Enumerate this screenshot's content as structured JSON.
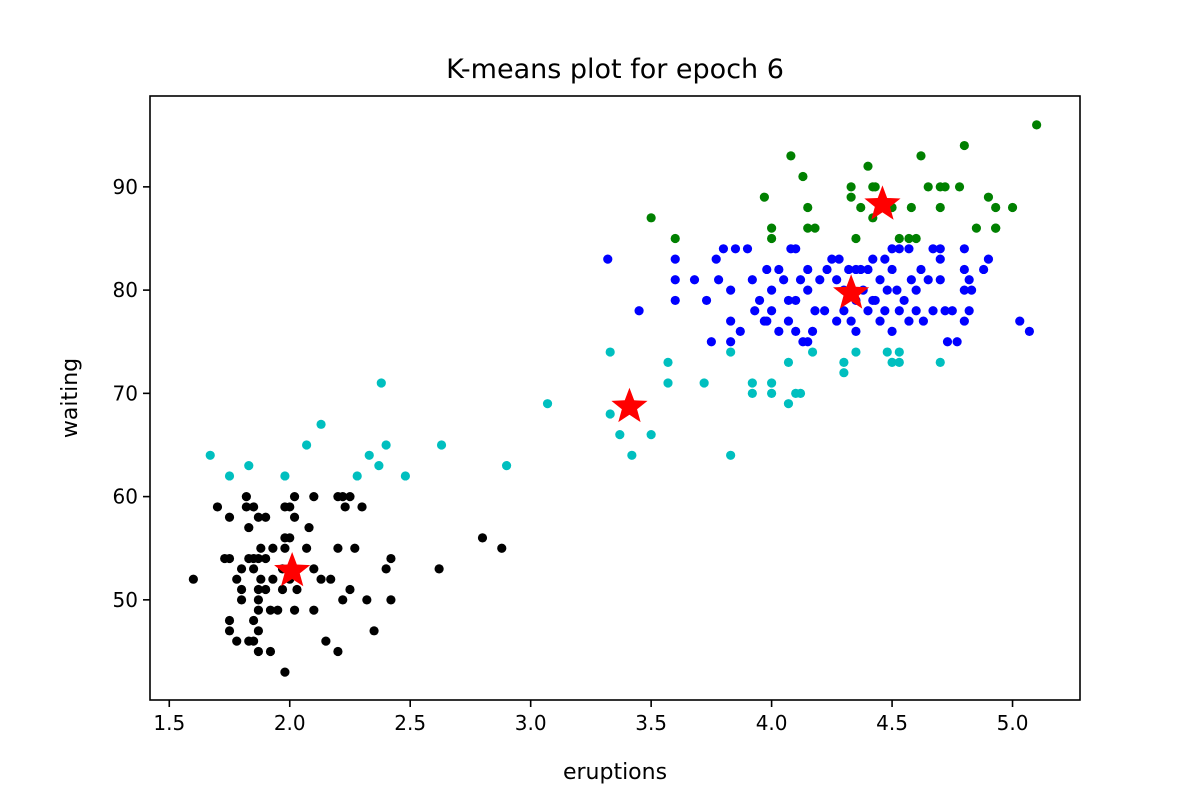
{
  "chart_data": {
    "type": "scatter",
    "title": "K-means plot for epoch 6",
    "xlabel": "eruptions",
    "ylabel": "waiting",
    "xlim": [
      1.42,
      5.28
    ],
    "ylim": [
      40.3,
      98.8
    ],
    "xticks": [
      1.5,
      2.0,
      2.5,
      3.0,
      3.5,
      4.0,
      4.5,
      5.0
    ],
    "xtick_labels": [
      "1.5",
      "2.0",
      "2.5",
      "3.0",
      "3.5",
      "4.0",
      "4.5",
      "5.0"
    ],
    "yticks": [
      50,
      60,
      70,
      80,
      90
    ],
    "ytick_labels": [
      "50",
      "60",
      "70",
      "80",
      "90"
    ],
    "grid": false,
    "legend": "none",
    "series": [
      {
        "color": "#000000",
        "marker": "dot",
        "points": [
          [
            1.6,
            52
          ],
          [
            1.7,
            59
          ],
          [
            1.75,
            54
          ],
          [
            1.73,
            54
          ],
          [
            1.75,
            58
          ],
          [
            1.75,
            48
          ],
          [
            1.75,
            47
          ],
          [
            1.78,
            52
          ],
          [
            1.78,
            46
          ],
          [
            1.8,
            53
          ],
          [
            1.8,
            51
          ],
          [
            1.8,
            50
          ],
          [
            1.82,
            60
          ],
          [
            1.82,
            59
          ],
          [
            1.83,
            54
          ],
          [
            1.83,
            57
          ],
          [
            1.83,
            46
          ],
          [
            1.85,
            59
          ],
          [
            1.85,
            54
          ],
          [
            1.85,
            53
          ],
          [
            1.85,
            48
          ],
          [
            1.85,
            46
          ],
          [
            1.87,
            58
          ],
          [
            1.87,
            54
          ],
          [
            1.87,
            51
          ],
          [
            1.87,
            50
          ],
          [
            1.87,
            49
          ],
          [
            1.87,
            47
          ],
          [
            1.87,
            45
          ],
          [
            1.88,
            55
          ],
          [
            1.88,
            52
          ],
          [
            1.9,
            58
          ],
          [
            1.9,
            54
          ],
          [
            1.9,
            51
          ],
          [
            1.92,
            49
          ],
          [
            1.92,
            45
          ],
          [
            1.93,
            52
          ],
          [
            1.93,
            55
          ],
          [
            1.95,
            49
          ],
          [
            1.97,
            53
          ],
          [
            1.97,
            51
          ],
          [
            1.98,
            56
          ],
          [
            1.98,
            59
          ],
          [
            1.98,
            55
          ],
          [
            2.0,
            59
          ],
          [
            2.0,
            52
          ],
          [
            1.98,
            43
          ],
          [
            2.0,
            56
          ],
          [
            2.02,
            60
          ],
          [
            2.02,
            49
          ],
          [
            2.02,
            58
          ],
          [
            2.03,
            51
          ],
          [
            2.07,
            55
          ],
          [
            2.08,
            57
          ],
          [
            2.1,
            60
          ],
          [
            2.1,
            53
          ],
          [
            2.1,
            49
          ],
          [
            2.13,
            52
          ],
          [
            2.15,
            46
          ],
          [
            2.17,
            52
          ],
          [
            2.2,
            60
          ],
          [
            2.2,
            55
          ],
          [
            2.2,
            45
          ],
          [
            2.22,
            60
          ],
          [
            2.22,
            50
          ],
          [
            2.23,
            59
          ],
          [
            2.25,
            51
          ],
          [
            2.25,
            60
          ],
          [
            2.27,
            55
          ],
          [
            2.3,
            59
          ],
          [
            2.32,
            50
          ],
          [
            2.35,
            47
          ],
          [
            2.4,
            53
          ],
          [
            2.42,
            54
          ],
          [
            2.42,
            50
          ],
          [
            2.62,
            53
          ],
          [
            2.8,
            56
          ],
          [
            2.88,
            55
          ]
        ]
      },
      {
        "color": "#00bfbf",
        "marker": "dot",
        "points": [
          [
            1.67,
            64
          ],
          [
            1.75,
            62
          ],
          [
            1.83,
            63
          ],
          [
            1.98,
            62
          ],
          [
            2.07,
            65
          ],
          [
            2.13,
            67
          ],
          [
            2.28,
            62
          ],
          [
            2.33,
            64
          ],
          [
            2.37,
            63
          ],
          [
            2.38,
            71
          ],
          [
            2.4,
            65
          ],
          [
            2.48,
            62
          ],
          [
            2.63,
            65
          ],
          [
            2.9,
            63
          ],
          [
            3.07,
            69
          ],
          [
            3.33,
            74
          ],
          [
            3.33,
            68
          ],
          [
            3.37,
            66
          ],
          [
            3.42,
            64
          ],
          [
            3.5,
            66
          ],
          [
            3.57,
            73
          ],
          [
            3.57,
            71
          ],
          [
            3.72,
            71
          ],
          [
            3.83,
            74
          ],
          [
            3.83,
            64
          ],
          [
            3.92,
            71
          ],
          [
            3.92,
            70
          ],
          [
            4.0,
            71
          ],
          [
            4.0,
            70
          ],
          [
            4.07,
            73
          ],
          [
            4.07,
            69
          ],
          [
            4.1,
            70
          ],
          [
            4.12,
            70
          ],
          [
            4.17,
            74
          ],
          [
            4.3,
            73
          ],
          [
            4.3,
            72
          ],
          [
            4.35,
            74
          ],
          [
            4.48,
            74
          ],
          [
            4.5,
            73
          ],
          [
            4.53,
            74
          ],
          [
            4.53,
            73
          ],
          [
            4.7,
            73
          ]
        ]
      },
      {
        "color": "#0000ff",
        "marker": "dot",
        "points": [
          [
            3.32,
            83
          ],
          [
            3.45,
            78
          ],
          [
            3.6,
            83
          ],
          [
            3.6,
            79
          ],
          [
            3.6,
            81
          ],
          [
            3.68,
            81
          ],
          [
            3.73,
            79
          ],
          [
            3.75,
            75
          ],
          [
            3.77,
            83
          ],
          [
            3.78,
            81
          ],
          [
            3.8,
            84
          ],
          [
            3.83,
            80
          ],
          [
            3.83,
            77
          ],
          [
            3.83,
            75
          ],
          [
            3.85,
            84
          ],
          [
            3.87,
            76
          ],
          [
            3.9,
            84
          ],
          [
            3.92,
            81
          ],
          [
            3.93,
            78
          ],
          [
            3.95,
            79
          ],
          [
            3.97,
            77
          ],
          [
            3.98,
            82
          ],
          [
            3.98,
            77
          ],
          [
            4.0,
            78
          ],
          [
            4.0,
            80
          ],
          [
            4.03,
            82
          ],
          [
            4.03,
            76
          ],
          [
            4.05,
            81
          ],
          [
            4.07,
            79
          ],
          [
            4.07,
            77
          ],
          [
            4.08,
            84
          ],
          [
            4.1,
            84
          ],
          [
            4.1,
            79
          ],
          [
            4.1,
            76
          ],
          [
            4.12,
            81
          ],
          [
            4.13,
            75
          ],
          [
            4.15,
            82
          ],
          [
            4.15,
            80
          ],
          [
            4.15,
            75
          ],
          [
            4.17,
            76
          ],
          [
            4.18,
            78
          ],
          [
            4.2,
            81
          ],
          [
            4.22,
            78
          ],
          [
            4.23,
            82
          ],
          [
            4.25,
            83
          ],
          [
            4.27,
            81
          ],
          [
            4.27,
            77
          ],
          [
            4.28,
            83
          ],
          [
            4.3,
            80
          ],
          [
            4.3,
            78
          ],
          [
            4.32,
            82
          ],
          [
            4.33,
            77
          ],
          [
            4.35,
            82
          ],
          [
            4.35,
            79
          ],
          [
            4.35,
            76
          ],
          [
            4.37,
            82
          ],
          [
            4.38,
            80
          ],
          [
            4.4,
            82
          ],
          [
            4.4,
            78
          ],
          [
            4.42,
            83
          ],
          [
            4.42,
            79
          ],
          [
            4.43,
            79
          ],
          [
            4.45,
            81
          ],
          [
            4.45,
            77
          ],
          [
            4.47,
            83
          ],
          [
            4.47,
            78
          ],
          [
            4.48,
            80
          ],
          [
            4.5,
            84
          ],
          [
            4.5,
            82
          ],
          [
            4.5,
            76
          ],
          [
            4.52,
            80
          ],
          [
            4.53,
            84
          ],
          [
            4.53,
            78
          ],
          [
            4.55,
            79
          ],
          [
            4.57,
            84
          ],
          [
            4.57,
            77
          ],
          [
            4.58,
            81
          ],
          [
            4.6,
            80
          ],
          [
            4.6,
            78
          ],
          [
            4.62,
            82
          ],
          [
            4.63,
            77
          ],
          [
            4.65,
            81
          ],
          [
            4.67,
            84
          ],
          [
            4.67,
            78
          ],
          [
            4.7,
            84
          ],
          [
            4.7,
            83
          ],
          [
            4.7,
            81
          ],
          [
            4.72,
            78
          ],
          [
            4.73,
            75
          ],
          [
            4.75,
            78
          ],
          [
            4.77,
            75
          ],
          [
            4.8,
            84
          ],
          [
            4.8,
            82
          ],
          [
            4.8,
            80
          ],
          [
            4.8,
            77
          ],
          [
            4.82,
            81
          ],
          [
            4.82,
            78
          ],
          [
            4.83,
            80
          ],
          [
            4.88,
            82
          ],
          [
            4.9,
            83
          ],
          [
            5.03,
            77
          ],
          [
            5.07,
            76
          ]
        ]
      },
      {
        "color": "#008000",
        "marker": "dot",
        "points": [
          [
            3.5,
            87
          ],
          [
            3.6,
            85
          ],
          [
            3.97,
            89
          ],
          [
            4.0,
            86
          ],
          [
            4.0,
            85
          ],
          [
            4.08,
            93
          ],
          [
            4.13,
            91
          ],
          [
            4.15,
            86
          ],
          [
            4.15,
            88
          ],
          [
            4.18,
            86
          ],
          [
            4.33,
            90
          ],
          [
            4.33,
            89
          ],
          [
            4.35,
            85
          ],
          [
            4.37,
            88
          ],
          [
            4.4,
            92
          ],
          [
            4.42,
            90
          ],
          [
            4.42,
            87
          ],
          [
            4.43,
            90
          ],
          [
            4.5,
            88
          ],
          [
            4.53,
            85
          ],
          [
            4.57,
            85
          ],
          [
            4.58,
            88
          ],
          [
            4.6,
            85
          ],
          [
            4.62,
            93
          ],
          [
            4.65,
            90
          ],
          [
            4.7,
            90
          ],
          [
            4.7,
            88
          ],
          [
            4.72,
            90
          ],
          [
            4.78,
            90
          ],
          [
            4.8,
            94
          ],
          [
            4.85,
            86
          ],
          [
            4.9,
            89
          ],
          [
            4.93,
            88
          ],
          [
            4.93,
            86
          ],
          [
            4.93,
            86
          ],
          [
            5.0,
            88
          ],
          [
            5.1,
            96
          ]
        ]
      },
      {
        "color": "#ff0000",
        "marker": "star",
        "points": [
          [
            2.01,
            52.8
          ],
          [
            3.41,
            68.7
          ],
          [
            4.33,
            79.7
          ],
          [
            4.46,
            88.3
          ]
        ]
      }
    ]
  }
}
